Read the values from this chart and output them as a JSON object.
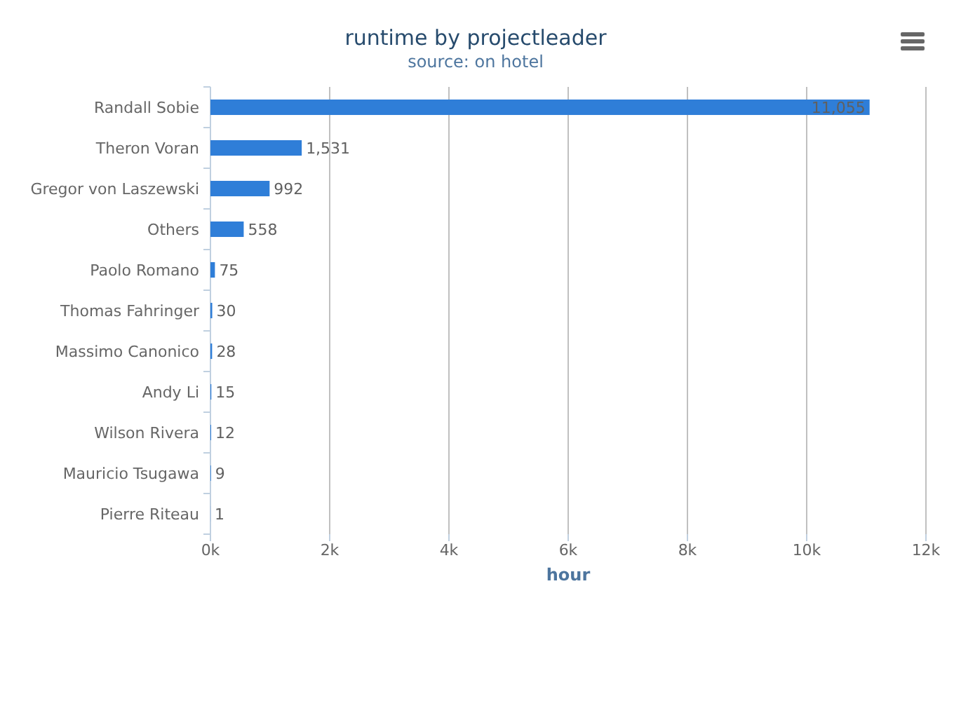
{
  "chart_data": {
    "type": "bar",
    "orientation": "horizontal",
    "title": "runtime by projectleader",
    "subtitle": "source: on hotel",
    "xlabel": "hour",
    "categories": [
      "Randall Sobie",
      "Theron Voran",
      "Gregor von Laszewski",
      "Others",
      "Paolo Romano",
      "Thomas Fahringer",
      "Massimo Canonico",
      "Andy Li",
      "Wilson Rivera",
      "Mauricio Tsugawa",
      "Pierre Riteau"
    ],
    "values": [
      11055,
      1531,
      992,
      558,
      75,
      30,
      28,
      15,
      12,
      9,
      1
    ],
    "color": "#2f7ed8",
    "value_labels": [
      "11,055",
      "1,531",
      "992",
      "558",
      "75",
      "30",
      "28",
      "15",
      "12",
      "9",
      "1"
    ],
    "xlim": [
      0,
      12000
    ],
    "xticks": [
      {
        "value": 0,
        "label": "0k"
      },
      {
        "value": 2000,
        "label": "2k"
      },
      {
        "value": 4000,
        "label": "4k"
      },
      {
        "value": 6000,
        "label": "6k"
      },
      {
        "value": 8000,
        "label": "8k"
      },
      {
        "value": 10000,
        "label": "10k"
      },
      {
        "value": 12000,
        "label": "12k"
      }
    ],
    "grid": "x"
  }
}
